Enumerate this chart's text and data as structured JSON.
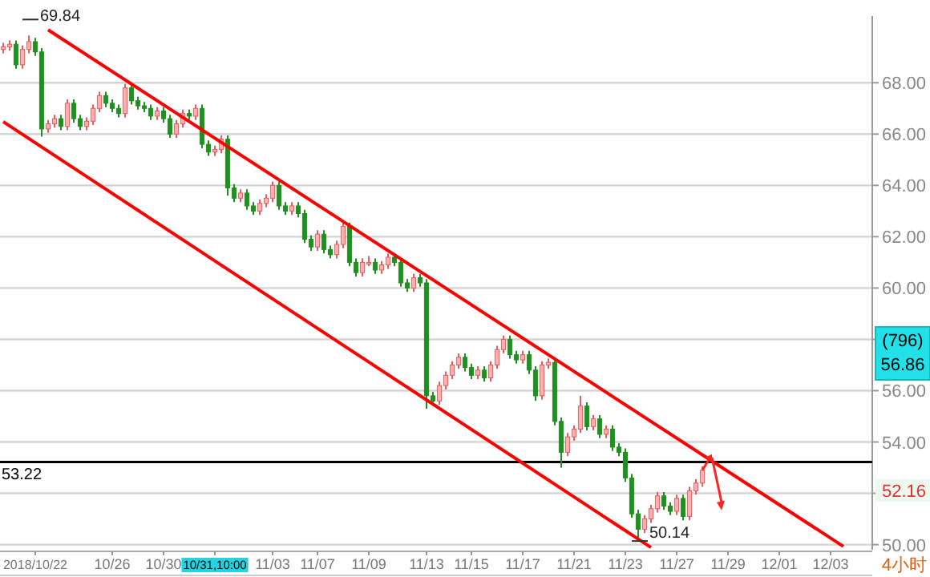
{
  "chart_data": {
    "type": "candlestick",
    "categories": [
      null,
      null,
      null,
      null,
      null,
      "2018/10/22",
      null,
      null,
      null,
      null,
      null,
      null,
      null,
      null,
      null,
      null,
      null,
      "10/26",
      null,
      null,
      null,
      null,
      null,
      null,
      null,
      "10/30",
      null,
      null,
      null,
      null,
      null,
      null,
      null,
      "10/31,10:00",
      null,
      null,
      null,
      null,
      null,
      null,
      null,
      null,
      "11/03",
      null,
      null,
      null,
      null,
      null,
      null,
      "11/07",
      null,
      null,
      null,
      null,
      null,
      null,
      null,
      "11/09",
      null,
      null,
      null,
      null,
      null,
      null,
      null,
      null,
      "11/13",
      null,
      null,
      null,
      null,
      null,
      null,
      "11/15",
      null,
      null,
      null,
      null,
      null,
      null,
      null,
      "11/17",
      null,
      null,
      null,
      null,
      null,
      null,
      null,
      "11/21",
      null,
      null,
      null,
      null,
      null,
      null,
      null,
      "11/23",
      null,
      null,
      null,
      null,
      null,
      null,
      null,
      "11/27",
      null,
      null,
      null,
      null,
      null,
      null,
      null,
      "11/29",
      null,
      null,
      null,
      null,
      null,
      null,
      null,
      "12/01",
      null,
      null,
      null,
      null,
      null,
      null,
      null,
      "12/03",
      null,
      null,
      null,
      null,
      null,
      null
    ],
    "ohlc": [
      [
        69.3,
        69.55,
        69.15,
        69.4
      ],
      [
        69.4,
        69.65,
        69.25,
        69.5
      ],
      [
        69.5,
        69.65,
        68.55,
        68.7
      ],
      [
        68.7,
        69.45,
        68.55,
        69.3
      ],
      [
        69.3,
        69.84,
        69.15,
        69.6
      ],
      [
        69.6,
        69.75,
        69.05,
        69.2
      ],
      [
        69.2,
        69.35,
        65.9,
        66.2
      ],
      [
        66.2,
        66.55,
        66.05,
        66.4
      ],
      [
        66.4,
        66.75,
        66.25,
        66.6
      ],
      [
        66.6,
        66.75,
        66.15,
        66.3
      ],
      [
        66.3,
        67.35,
        66.15,
        67.2
      ],
      [
        67.2,
        67.35,
        66.45,
        66.6
      ],
      [
        66.6,
        66.75,
        66.15,
        66.3
      ],
      [
        66.3,
        66.65,
        66.15,
        66.5
      ],
      [
        66.5,
        67.15,
        66.35,
        67.0
      ],
      [
        67.0,
        67.65,
        66.85,
        67.5
      ],
      [
        67.5,
        67.65,
        67.05,
        67.2
      ],
      [
        67.2,
        67.35,
        66.85,
        67.0
      ],
      [
        67.0,
        67.15,
        66.65,
        66.8
      ],
      [
        66.8,
        67.95,
        66.65,
        67.8
      ],
      [
        67.8,
        67.95,
        67.15,
        67.3
      ],
      [
        67.3,
        67.45,
        66.95,
        67.1
      ],
      [
        67.1,
        67.25,
        66.85,
        67.0
      ],
      [
        67.0,
        67.15,
        66.55,
        66.7
      ],
      [
        66.7,
        67.05,
        66.55,
        66.9
      ],
      [
        66.9,
        67.05,
        66.45,
        66.6
      ],
      [
        66.6,
        66.75,
        65.85,
        66.0
      ],
      [
        66.0,
        66.55,
        65.85,
        66.4
      ],
      [
        66.4,
        66.95,
        66.25,
        66.8
      ],
      [
        66.8,
        66.95,
        66.55,
        66.7
      ],
      [
        66.7,
        67.15,
        66.55,
        67.0
      ],
      [
        67.0,
        67.15,
        65.45,
        65.6
      ],
      [
        65.6,
        65.75,
        65.15,
        65.3
      ],
      [
        65.3,
        65.55,
        65.15,
        65.4
      ],
      [
        65.4,
        65.95,
        65.25,
        65.8
      ],
      [
        65.8,
        65.95,
        63.6,
        63.9
      ],
      [
        63.9,
        64.05,
        63.35,
        63.5
      ],
      [
        63.5,
        63.85,
        63.35,
        63.7
      ],
      [
        63.7,
        63.85,
        63.05,
        63.2
      ],
      [
        63.2,
        63.35,
        62.85,
        63.0
      ],
      [
        63.0,
        63.45,
        62.85,
        63.3
      ],
      [
        63.3,
        63.65,
        63.15,
        63.5
      ],
      [
        63.5,
        64.15,
        63.35,
        64.0
      ],
      [
        64.0,
        64.15,
        63.05,
        63.2
      ],
      [
        63.2,
        63.35,
        62.85,
        63.0
      ],
      [
        63.0,
        63.35,
        62.85,
        63.2
      ],
      [
        63.2,
        63.35,
        62.75,
        62.9
      ],
      [
        62.9,
        63.05,
        61.75,
        61.9
      ],
      [
        61.9,
        62.05,
        61.45,
        61.6
      ],
      [
        61.6,
        62.25,
        61.45,
        62.1
      ],
      [
        62.1,
        62.25,
        61.35,
        61.5
      ],
      [
        61.5,
        61.65,
        61.15,
        61.3
      ],
      [
        61.3,
        61.85,
        61.15,
        61.7
      ],
      [
        61.7,
        62.55,
        61.55,
        62.4
      ],
      [
        62.4,
        62.55,
        60.85,
        61.0
      ],
      [
        61.0,
        61.15,
        60.45,
        60.6
      ],
      [
        60.6,
        61.15,
        60.45,
        61.0
      ],
      [
        61.0,
        61.25,
        60.85,
        61.0
      ],
      [
        61.0,
        61.15,
        60.55,
        60.7
      ],
      [
        60.7,
        61.05,
        60.55,
        60.9
      ],
      [
        60.9,
        61.35,
        60.75,
        61.2
      ],
      [
        61.2,
        61.35,
        60.85,
        61.0
      ],
      [
        61.0,
        61.15,
        60.05,
        60.2
      ],
      [
        60.2,
        60.35,
        59.85,
        60.0
      ],
      [
        60.0,
        60.55,
        59.85,
        60.4
      ],
      [
        60.4,
        60.55,
        60.05,
        60.2
      ],
      [
        60.2,
        60.35,
        55.3,
        55.8
      ],
      [
        55.8,
        55.95,
        55.45,
        55.6
      ],
      [
        55.6,
        56.35,
        55.45,
        56.2
      ],
      [
        56.2,
        56.75,
        56.05,
        56.6
      ],
      [
        56.6,
        57.15,
        56.45,
        57.0
      ],
      [
        57.0,
        57.45,
        56.85,
        57.3
      ],
      [
        57.3,
        57.45,
        56.75,
        56.9
      ],
      [
        56.9,
        57.05,
        56.45,
        56.6
      ],
      [
        56.6,
        56.95,
        56.45,
        56.8
      ],
      [
        56.8,
        56.95,
        56.35,
        56.5
      ],
      [
        56.5,
        57.15,
        56.35,
        57.0
      ],
      [
        57.0,
        57.75,
        56.85,
        57.6
      ],
      [
        57.6,
        58.15,
        57.45,
        58.0
      ],
      [
        58.0,
        58.15,
        57.25,
        57.4
      ],
      [
        57.4,
        57.55,
        57.05,
        57.2
      ],
      [
        57.2,
        57.55,
        57.05,
        57.4
      ],
      [
        57.4,
        57.55,
        56.65,
        56.8
      ],
      [
        56.8,
        56.95,
        55.6,
        55.8
      ],
      [
        55.8,
        57.15,
        55.65,
        57.0
      ],
      [
        57.0,
        57.25,
        56.85,
        57.1
      ],
      [
        57.1,
        57.25,
        54.65,
        54.8
      ],
      [
        54.8,
        54.95,
        53.0,
        53.6
      ],
      [
        53.6,
        54.35,
        53.45,
        54.2
      ],
      [
        54.2,
        54.65,
        54.05,
        54.5
      ],
      [
        54.5,
        55.8,
        54.35,
        55.4
      ],
      [
        55.4,
        55.55,
        54.45,
        54.6
      ],
      [
        54.6,
        55.05,
        54.45,
        54.9
      ],
      [
        54.9,
        55.05,
        54.15,
        54.3
      ],
      [
        54.3,
        54.65,
        54.15,
        54.5
      ],
      [
        54.5,
        54.65,
        53.65,
        53.8
      ],
      [
        53.8,
        53.95,
        53.45,
        53.6
      ],
      [
        53.6,
        53.75,
        52.45,
        52.6
      ],
      [
        52.6,
        52.75,
        51.05,
        51.2
      ],
      [
        51.2,
        51.35,
        50.14,
        50.6
      ],
      [
        50.6,
        51.15,
        50.45,
        51.0
      ],
      [
        51.0,
        51.55,
        50.85,
        51.4
      ],
      [
        51.4,
        52.05,
        51.25,
        51.9
      ],
      [
        51.9,
        52.05,
        51.35,
        51.5
      ],
      [
        51.5,
        51.65,
        51.15,
        51.3
      ],
      [
        51.3,
        51.95,
        51.15,
        51.8
      ],
      [
        51.8,
        51.95,
        50.95,
        51.1
      ],
      [
        51.1,
        52.25,
        50.95,
        52.1
      ],
      [
        52.1,
        52.55,
        51.95,
        52.4
      ],
      [
        52.4,
        53.05,
        52.25,
        52.9
      ],
      null,
      null,
      null,
      null,
      null,
      null,
      null,
      null,
      null,
      null,
      null,
      null,
      null,
      null,
      null,
      null,
      null,
      null,
      null,
      null,
      null,
      null,
      null,
      null,
      null,
      null
    ],
    "series": [
      {
        "type": "line",
        "color": "#ff0000",
        "values": [
          66.48,
          null,
          null,
          null,
          null,
          null,
          null,
          null,
          null,
          null,
          null,
          null,
          null,
          null,
          null,
          null,
          null,
          null,
          null,
          null,
          null,
          null,
          null,
          null,
          null,
          null,
          null,
          null,
          null,
          null,
          null,
          null,
          null,
          null,
          null,
          null,
          null,
          null,
          null,
          null,
          null,
          null,
          null,
          null,
          null,
          null,
          null,
          null,
          null,
          null,
          null,
          null,
          null,
          null,
          null,
          null,
          null,
          null,
          null,
          null,
          null,
          null,
          null,
          null,
          null,
          null,
          null,
          null,
          null,
          null,
          null,
          null,
          null,
          null,
          null,
          null,
          null,
          null,
          null,
          null,
          null,
          null,
          null,
          null,
          null,
          null,
          null,
          null,
          null,
          null,
          null,
          null,
          null,
          null,
          null,
          null,
          null,
          null,
          null,
          null,
          null,
          49.89,
          null,
          null,
          null,
          null,
          null,
          null,
          null,
          null,
          null,
          null,
          null,
          null,
          null,
          null,
          null,
          null,
          null,
          null,
          null,
          null,
          null,
          null,
          null,
          null,
          null,
          null,
          null,
          null,
          null,
          null,
          null,
          null,
          null,
          null
        ]
      },
      {
        "type": "line",
        "color": "#ff0000",
        "values": [
          null,
          null,
          null,
          null,
          null,
          null,
          null,
          70.06,
          null,
          null,
          null,
          null,
          null,
          null,
          null,
          null,
          null,
          null,
          null,
          null,
          null,
          null,
          null,
          null,
          null,
          null,
          null,
          null,
          null,
          null,
          null,
          null,
          null,
          null,
          null,
          null,
          null,
          null,
          null,
          null,
          null,
          null,
          null,
          null,
          null,
          null,
          null,
          null,
          null,
          null,
          null,
          null,
          null,
          null,
          null,
          null,
          null,
          null,
          null,
          null,
          null,
          null,
          null,
          null,
          null,
          null,
          null,
          null,
          null,
          null,
          null,
          null,
          null,
          null,
          null,
          null,
          null,
          null,
          null,
          null,
          null,
          null,
          null,
          null,
          null,
          null,
          null,
          null,
          null,
          null,
          null,
          null,
          null,
          null,
          null,
          null,
          null,
          null,
          null,
          null,
          null,
          null,
          null,
          null,
          null,
          null,
          null,
          null,
          null,
          null,
          null,
          null,
          null,
          null,
          null,
          null,
          null,
          null,
          null,
          null,
          null,
          null,
          null,
          null,
          null,
          null,
          null,
          null,
          null,
          null,
          null,
          49.93,
          null,
          null,
          null,
          null
        ]
      }
    ],
    "ylim": [
      49.8,
      70.6
    ],
    "yticks": [
      {
        "value": 50,
        "label": "50.00"
      },
      {
        "value": 52,
        "label": null
      },
      {
        "value": 54,
        "label": "54.00"
      },
      {
        "value": 56,
        "label": "56.00"
      },
      {
        "value": 58,
        "label": null
      },
      {
        "value": 60,
        "label": "60.00"
      },
      {
        "value": 62,
        "label": "62.00"
      },
      {
        "value": 64,
        "label": "64.00"
      },
      {
        "value": 66,
        "label": "66.00"
      },
      {
        "value": 68,
        "label": "68.00"
      }
    ],
    "grid": "y",
    "ref_lines": [
      {
        "axis": "y",
        "value": 53.22,
        "label": "53.22",
        "color": "#000000"
      }
    ],
    "annotations": [
      "69.84",
      "50.14",
      "(796)",
      "56.86",
      "52.16",
      "4小时"
    ]
  }
}
